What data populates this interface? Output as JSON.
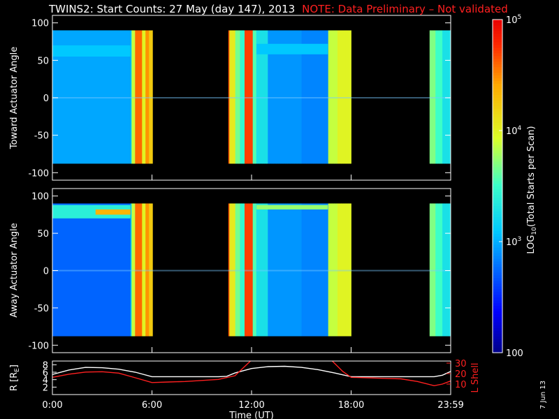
{
  "header": {
    "title": "TWINS2: Start Counts: 27 May (day 147), 2013",
    "note": "NOTE: Data Preliminary – Not validated",
    "note_color": "#ff2020"
  },
  "stamp": "7 Jun 13",
  "chart_data": [
    {
      "type": "heatmap",
      "panel": "toward",
      "ylabel": "Toward Actuator Angle",
      "ylim": [
        -110,
        110
      ],
      "yticks": [
        100,
        50,
        0,
        -50,
        -100
      ],
      "xlim": [
        0,
        24
      ],
      "data_coverage_hours": [
        [
          4.7,
          6.03
        ],
        [
          10.6,
          18.0
        ],
        [
          22.73,
          24.0
        ]
      ],
      "angle_range_deg": [
        -88,
        90
      ],
      "colorscale": "rainbow (blue low, red high)"
    },
    {
      "type": "heatmap",
      "panel": "away",
      "ylabel": "Away Actuator Angle",
      "ylim": [
        -110,
        110
      ],
      "yticks": [
        100,
        50,
        0,
        -50,
        -100
      ],
      "xlim": [
        0,
        24
      ],
      "data_coverage_hours": [
        [
          4.7,
          6.03
        ],
        [
          10.6,
          18.0
        ],
        [
          22.73,
          24.0
        ]
      ],
      "angle_range_deg": [
        -88,
        90
      ],
      "colorscale": "rainbow (blue low, red high)"
    },
    {
      "type": "line",
      "panel": "orbit",
      "xlabel": "Time (UT)",
      "xticks": [
        "0:00",
        "6:00",
        "12:00",
        "18:00",
        "23:59"
      ],
      "xlim": [
        0,
        24
      ],
      "ylabel_left": "R [R",
      "ylabel_left_sub": "E",
      "ylabel_left_close": "]",
      "yticks_left": [
        8,
        6,
        4,
        2
      ],
      "ylim_left": [
        0,
        9
      ],
      "ylabel_right": "L Shell",
      "yticks_right": [
        30,
        20,
        10
      ],
      "ylim_right": [
        0,
        32
      ],
      "right_axis_color": "#ff2020",
      "series": [
        {
          "color": "#ffffff",
          "x": [
            0,
            1,
            2,
            3,
            4,
            5,
            6,
            7,
            8,
            9,
            10,
            10.5,
            11,
            12,
            13,
            14,
            15,
            16,
            17,
            18,
            19,
            20,
            21,
            22,
            23,
            23.5,
            24
          ],
          "y": [
            5.4,
            6.6,
            7.3,
            7.2,
            6.8,
            6.0,
            4.8,
            4.8,
            4.8,
            4.8,
            4.8,
            4.9,
            5.8,
            7.0,
            7.5,
            7.6,
            7.3,
            6.7,
            5.8,
            4.8,
            4.8,
            4.8,
            4.8,
            4.8,
            4.8,
            5.2,
            6.2
          ]
        },
        {
          "color": "#ff2020",
          "x": [
            0,
            1,
            2,
            3,
            4,
            5,
            6,
            7,
            8,
            9,
            10,
            11,
            12,
            16.8,
            17.5,
            18,
            19,
            20,
            21,
            22,
            23,
            23.5,
            24
          ],
          "y": [
            16.5,
            19.5,
            21.5,
            21.8,
            20.5,
            16.0,
            11.5,
            12.0,
            12.5,
            13.5,
            14.5,
            18.0,
            33,
            33,
            22.0,
            16.5,
            16.0,
            15.5,
            15.0,
            12.5,
            8.5,
            10.0,
            13.0
          ]
        }
      ]
    },
    {
      "type": "colorbar",
      "label_prefix": "LOG",
      "label_sub": "10",
      "label_suffix": "(Total Starts per Scan)",
      "range": [
        100,
        100000
      ],
      "scale": "log",
      "ticks": [
        {
          "value": 100000,
          "label": "10",
          "sup": "5"
        },
        {
          "value": 10000,
          "label": "10",
          "sup": "4"
        },
        {
          "value": 1000,
          "label": "10",
          "sup": "3"
        },
        {
          "value": 100,
          "label": "100",
          "sup": ""
        }
      ]
    }
  ]
}
